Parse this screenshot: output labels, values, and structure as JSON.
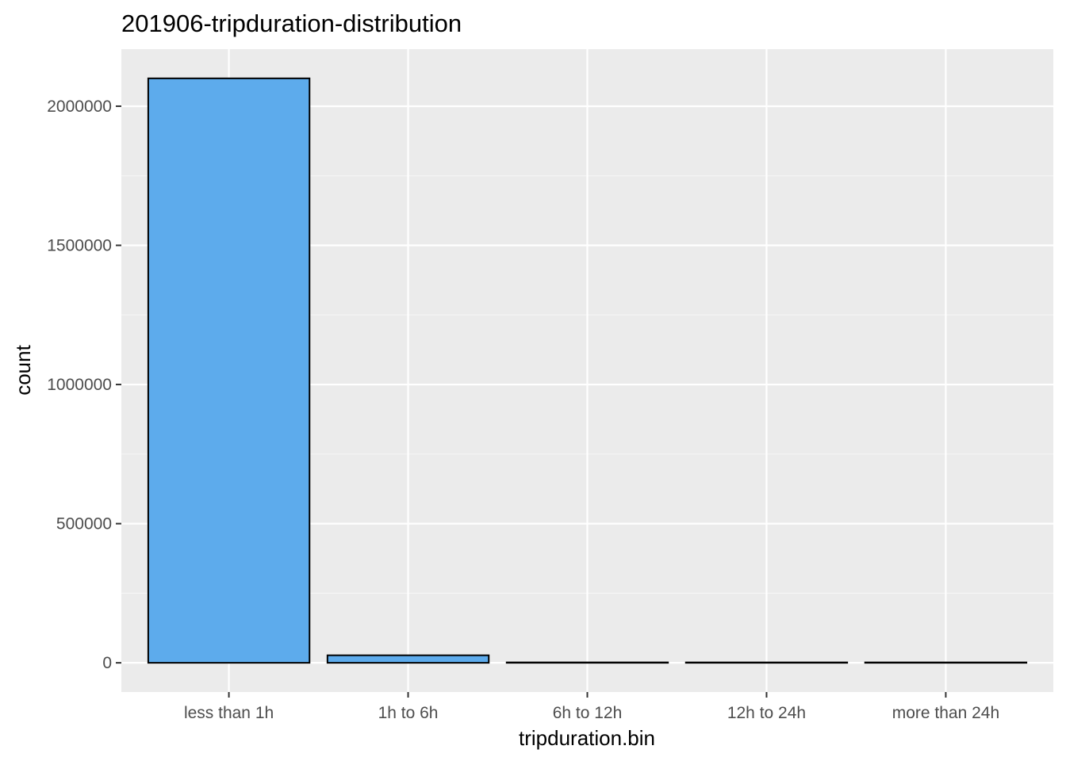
{
  "chart_data": {
    "type": "bar",
    "title": "201906-tripduration-distribution",
    "xlabel": "tripduration.bin",
    "ylabel": "count",
    "categories": [
      "less than 1h",
      "1h to 6h",
      "6h to 12h",
      "12h to 24h",
      "more than 24h"
    ],
    "values": [
      2100000,
      27000,
      1500,
      1000,
      1200
    ],
    "ylim": [
      -105000,
      2205000
    ],
    "yticks": [
      0,
      500000,
      1000000,
      1500000,
      2000000
    ],
    "ytick_labels": [
      "0",
      "500000",
      "1000000",
      "1500000",
      "2000000"
    ],
    "grid": true,
    "legend": "none",
    "colors": {
      "bar_fill": "#5DABEC",
      "bar_outline": "#000000",
      "panel_background": "#EBEBEB",
      "grid_major": "#FFFFFF",
      "grid_minor": "#F5F5F5",
      "tick_text": "#4D4D4D"
    }
  }
}
